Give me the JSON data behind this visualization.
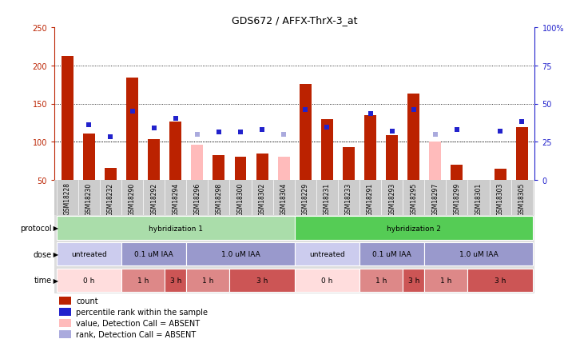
{
  "title": "GDS672 / AFFX-ThrX-3_at",
  "samples": [
    "GSM18228",
    "GSM18230",
    "GSM18232",
    "GSM18290",
    "GSM18292",
    "GSM18294",
    "GSM18296",
    "GSM18298",
    "GSM18300",
    "GSM18302",
    "GSM18304",
    "GSM18229",
    "GSM18231",
    "GSM18233",
    "GSM18291",
    "GSM18293",
    "GSM18295",
    "GSM18297",
    "GSM18299",
    "GSM18301",
    "GSM18303",
    "GSM18305"
  ],
  "count_values": [
    212,
    111,
    66,
    184,
    104,
    127,
    96,
    83,
    80,
    85,
    80,
    176,
    130,
    93,
    135,
    109,
    163,
    100,
    70,
    45,
    65,
    119
  ],
  "absent_count_values": [
    null,
    null,
    null,
    null,
    null,
    null,
    96,
    null,
    null,
    null,
    null,
    null,
    null,
    null,
    null,
    null,
    null,
    100,
    null,
    null,
    null,
    null
  ],
  "percentile_left_values": [
    null,
    122,
    107,
    140,
    118,
    131,
    null,
    113,
    113,
    116,
    null,
    142,
    119,
    null,
    137,
    114,
    142,
    null,
    116,
    null,
    114,
    126
  ],
  "absent_percentile_left_values": [
    null,
    null,
    null,
    null,
    null,
    null,
    110,
    null,
    null,
    null,
    110,
    null,
    null,
    null,
    null,
    null,
    null,
    110,
    null,
    null,
    null,
    null
  ],
  "is_absent": [
    false,
    false,
    false,
    false,
    false,
    false,
    true,
    false,
    false,
    false,
    true,
    false,
    false,
    false,
    false,
    false,
    false,
    true,
    false,
    false,
    false,
    false
  ],
  "count_color": "#bb2200",
  "absent_color": "#ffbbbb",
  "percentile_color": "#2222cc",
  "absent_percentile_color": "#aaaadd",
  "ylim_left": [
    50,
    250
  ],
  "left_ticks": [
    50,
    100,
    150,
    200,
    250
  ],
  "right_ticks": [
    0,
    25,
    50,
    75,
    100
  ],
  "right_tick_labels": [
    "0",
    "25",
    "50",
    "75",
    "100%"
  ],
  "grid_values": [
    100,
    150,
    200
  ],
  "protocol_groups": [
    {
      "label": "hybridization 1",
      "start": 0,
      "end": 10,
      "color": "#aaddaa"
    },
    {
      "label": "hybridization 2",
      "start": 11,
      "end": 21,
      "color": "#55cc55"
    }
  ],
  "dose_groups": [
    {
      "label": "untreated",
      "start": 0,
      "end": 2,
      "color": "#ccccee"
    },
    {
      "label": "0.1 uM IAA",
      "start": 3,
      "end": 5,
      "color": "#9999cc"
    },
    {
      "label": "1.0 uM IAA",
      "start": 6,
      "end": 10,
      "color": "#9999cc"
    },
    {
      "label": "untreated",
      "start": 11,
      "end": 13,
      "color": "#ccccee"
    },
    {
      "label": "0.1 uM IAA",
      "start": 14,
      "end": 16,
      "color": "#9999cc"
    },
    {
      "label": "1.0 uM IAA",
      "start": 17,
      "end": 21,
      "color": "#9999cc"
    }
  ],
  "time_groups": [
    {
      "label": "0 h",
      "start": 0,
      "end": 2,
      "color": "#ffdddd"
    },
    {
      "label": "1 h",
      "start": 3,
      "end": 4,
      "color": "#dd8888"
    },
    {
      "label": "3 h",
      "start": 5,
      "end": 5,
      "color": "#cc5555"
    },
    {
      "label": "1 h",
      "start": 6,
      "end": 7,
      "color": "#dd8888"
    },
    {
      "label": "3 h",
      "start": 8,
      "end": 10,
      "color": "#cc5555"
    },
    {
      "label": "0 h",
      "start": 11,
      "end": 13,
      "color": "#ffdddd"
    },
    {
      "label": "1 h",
      "start": 14,
      "end": 15,
      "color": "#dd8888"
    },
    {
      "label": "3 h",
      "start": 16,
      "end": 16,
      "color": "#cc5555"
    },
    {
      "label": "1 h",
      "start": 17,
      "end": 18,
      "color": "#dd8888"
    },
    {
      "label": "3 h",
      "start": 19,
      "end": 21,
      "color": "#cc5555"
    }
  ],
  "legend_labels": [
    "count",
    "percentile rank within the sample",
    "value, Detection Call = ABSENT",
    "rank, Detection Call = ABSENT"
  ],
  "legend_colors": [
    "#bb2200",
    "#2222cc",
    "#ffbbbb",
    "#aaaadd"
  ],
  "legend_markers": [
    "s",
    "s",
    "s",
    "s"
  ],
  "row_labels": [
    "protocol",
    "dose",
    "time"
  ],
  "background_color": "#ffffff",
  "xticklabel_bg": "#cccccc",
  "tick_label_color_left": "#bb2200",
  "tick_label_color_right": "#2222cc",
  "bar_width": 0.55
}
